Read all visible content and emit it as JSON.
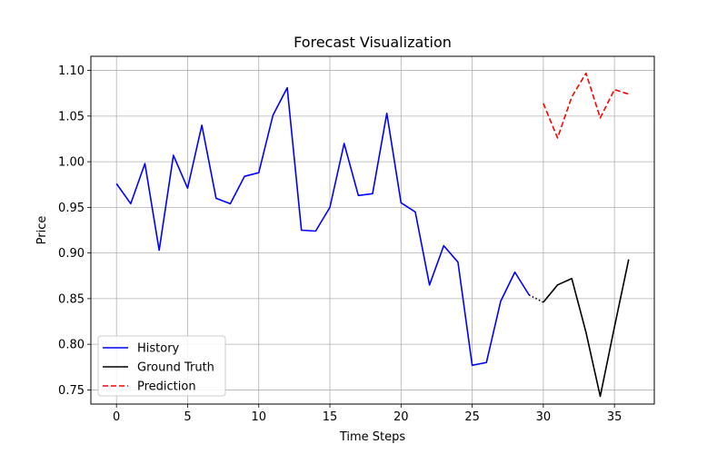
{
  "chart_data": {
    "type": "line",
    "title": "Forecast Visualization",
    "xlabel": "Time Steps",
    "ylabel": "Price",
    "xlim": [
      -1.8,
      37.8
    ],
    "ylim": [
      0.7345,
      1.1155
    ],
    "xticks": [
      0,
      5,
      10,
      15,
      20,
      25,
      30,
      35
    ],
    "xtick_labels": [
      "0",
      "5",
      "10",
      "15",
      "20",
      "25",
      "30",
      "35"
    ],
    "yticks": [
      0.75,
      0.8,
      0.85,
      0.9,
      0.95,
      1.0,
      1.05,
      1.1
    ],
    "ytick_labels": [
      "0.75",
      "0.80",
      "0.85",
      "0.90",
      "0.95",
      "1.00",
      "1.05",
      "1.10"
    ],
    "grid": true,
    "legend_position": "lower-left",
    "series": [
      {
        "name": "History",
        "color": "#0000ff",
        "style": "solid",
        "x": [
          0,
          1,
          2,
          3,
          4,
          5,
          6,
          7,
          8,
          9,
          10,
          11,
          12,
          13,
          14,
          15,
          16,
          17,
          18,
          19,
          20,
          21,
          22,
          23,
          24,
          25,
          26,
          27,
          28,
          29
        ],
        "values": [
          0.976,
          0.954,
          0.998,
          0.903,
          1.007,
          0.971,
          1.04,
          0.96,
          0.954,
          0.984,
          0.988,
          1.051,
          1.081,
          0.925,
          0.924,
          0.95,
          1.02,
          0.963,
          0.965,
          1.053,
          0.955,
          0.945,
          0.865,
          0.908,
          0.89,
          0.777,
          0.78,
          0.847,
          0.879,
          0.854
        ]
      },
      {
        "name": "Ground Truth",
        "color": "#000000",
        "style": "solid",
        "x": [
          30,
          31,
          32,
          33,
          34,
          35,
          36
        ],
        "values": [
          0.846,
          0.865,
          0.872,
          0.813,
          0.743,
          0.819,
          0.893
        ]
      },
      {
        "name": "Prediction",
        "color": "#ff0000",
        "style": "dashed",
        "x": [
          30,
          31,
          32,
          33,
          34,
          35,
          36
        ],
        "values": [
          1.064,
          1.026,
          1.071,
          1.097,
          1.048,
          1.079,
          1.074
        ]
      }
    ],
    "connector": {
      "color": "#000000",
      "style": "dotted",
      "x": [
        29,
        30
      ],
      "values": [
        0.854,
        0.846
      ]
    }
  }
}
